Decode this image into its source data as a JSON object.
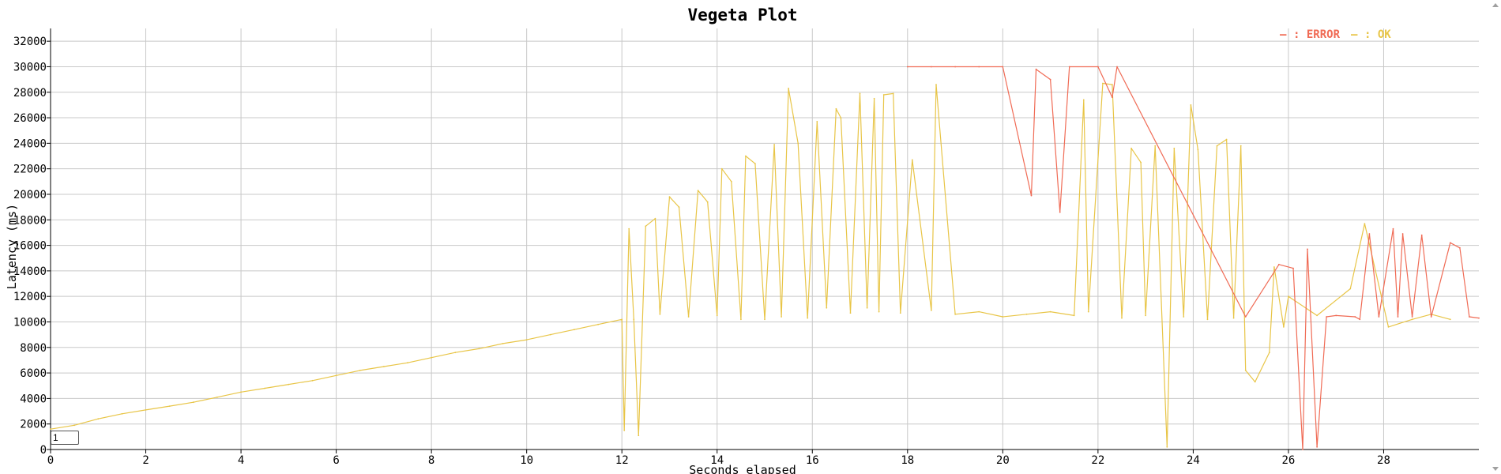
{
  "chart_data": {
    "type": "line",
    "title": "Vegeta Plot",
    "xlabel": "Seconds elapsed",
    "ylabel": "Latency (ms)",
    "xlim": [
      0,
      30
    ],
    "ylim": [
      0,
      33000
    ],
    "grid": true,
    "legend_placement": "top-right",
    "x_ticks": [
      0,
      2,
      4,
      6,
      8,
      10,
      12,
      14,
      16,
      18,
      20,
      22,
      24,
      26,
      28
    ],
    "y_ticks": [
      0,
      2000,
      4000,
      6000,
      8000,
      10000,
      12000,
      14000,
      16000,
      18000,
      20000,
      22000,
      24000,
      26000,
      28000,
      30000,
      32000
    ],
    "series": [
      {
        "name": "OK",
        "color": "#e8c547",
        "points": [
          [
            0,
            1600
          ],
          [
            0.5,
            1900
          ],
          [
            1,
            2400
          ],
          [
            1.5,
            2800
          ],
          [
            2,
            3100
          ],
          [
            2.5,
            3400
          ],
          [
            3,
            3700
          ],
          [
            3.5,
            4100
          ],
          [
            4,
            4500
          ],
          [
            4.5,
            4800
          ],
          [
            5,
            5100
          ],
          [
            5.5,
            5400
          ],
          [
            6,
            5800
          ],
          [
            6.5,
            6200
          ],
          [
            7,
            6500
          ],
          [
            7.5,
            6800
          ],
          [
            8,
            7200
          ],
          [
            8.5,
            7600
          ],
          [
            9,
            7900
          ],
          [
            9.5,
            8300
          ],
          [
            10,
            8600
          ],
          [
            10.5,
            9000
          ],
          [
            11,
            9400
          ],
          [
            11.5,
            9800
          ],
          [
            12,
            10200
          ],
          [
            12.05,
            1500
          ],
          [
            12.15,
            17300
          ],
          [
            12.25,
            10200
          ],
          [
            12.35,
            1100
          ],
          [
            12.5,
            17500
          ],
          [
            12.7,
            18100
          ],
          [
            12.8,
            10600
          ],
          [
            13,
            19800
          ],
          [
            13.2,
            19000
          ],
          [
            13.4,
            10400
          ],
          [
            13.6,
            20300
          ],
          [
            13.8,
            19400
          ],
          [
            14,
            10500
          ],
          [
            14.1,
            22000
          ],
          [
            14.3,
            21000
          ],
          [
            14.5,
            10200
          ],
          [
            14.6,
            23000
          ],
          [
            14.8,
            22400
          ],
          [
            15,
            10200
          ],
          [
            15.2,
            23900
          ],
          [
            15.35,
            10400
          ],
          [
            15.5,
            28300
          ],
          [
            15.7,
            24000
          ],
          [
            15.9,
            10300
          ],
          [
            16.1,
            25700
          ],
          [
            16.3,
            11100
          ],
          [
            16.5,
            26700
          ],
          [
            16.6,
            26000
          ],
          [
            16.8,
            10700
          ],
          [
            17,
            27900
          ],
          [
            17.15,
            11100
          ],
          [
            17.3,
            27500
          ],
          [
            17.4,
            10800
          ],
          [
            17.5,
            27800
          ],
          [
            17.7,
            27900
          ],
          [
            17.85,
            10700
          ],
          [
            18.1,
            22700
          ],
          [
            18.5,
            10900
          ],
          [
            18.6,
            28600
          ],
          [
            19,
            10600
          ],
          [
            19.5,
            10800
          ],
          [
            20,
            10400
          ],
          [
            20.5,
            10600
          ],
          [
            21,
            10800
          ],
          [
            21.5,
            10500
          ],
          [
            21.7,
            27400
          ],
          [
            21.8,
            10800
          ],
          [
            22.1,
            28700
          ],
          [
            22.3,
            28600
          ],
          [
            22.5,
            10300
          ],
          [
            22.7,
            23600
          ],
          [
            22.9,
            22500
          ],
          [
            23.0,
            10500
          ],
          [
            23.2,
            23800
          ],
          [
            23.45,
            200
          ],
          [
            23.6,
            23600
          ],
          [
            23.8,
            10400
          ],
          [
            23.95,
            27000
          ],
          [
            24.1,
            23500
          ],
          [
            24.3,
            10200
          ],
          [
            24.5,
            23800
          ],
          [
            24.7,
            24300
          ],
          [
            24.85,
            10300
          ],
          [
            25.0,
            23800
          ],
          [
            25.1,
            6200
          ],
          [
            25.3,
            5300
          ],
          [
            25.6,
            7600
          ],
          [
            25.7,
            14300
          ],
          [
            25.9,
            9600
          ],
          [
            26.0,
            12000
          ],
          [
            26.6,
            10500
          ],
          [
            27.3,
            12600
          ],
          [
            27.6,
            17700
          ],
          [
            28.1,
            9600
          ],
          [
            28.6,
            10200
          ],
          [
            29.0,
            10600
          ],
          [
            29.4,
            10200
          ]
        ]
      },
      {
        "name": "ERROR",
        "color": "#f06b55",
        "points": [
          [
            18,
            30000
          ],
          [
            18.5,
            30000
          ],
          [
            19,
            30000
          ],
          [
            19.5,
            30000
          ],
          [
            20,
            30000
          ],
          [
            20.6,
            19900
          ],
          [
            20.7,
            29800
          ],
          [
            21.0,
            29000
          ],
          [
            21.2,
            18600
          ],
          [
            21.4,
            30000
          ],
          [
            22.0,
            30000
          ],
          [
            22.3,
            27600
          ],
          [
            22.4,
            30000
          ],
          [
            25.1,
            10400
          ],
          [
            25.8,
            14500
          ],
          [
            26.1,
            14200
          ],
          [
            26.3,
            0
          ],
          [
            26.4,
            15700
          ],
          [
            26.6,
            200
          ],
          [
            26.8,
            10400
          ],
          [
            27.0,
            10500
          ],
          [
            27.4,
            10400
          ],
          [
            27.5,
            10200
          ],
          [
            27.7,
            16900
          ],
          [
            27.9,
            10400
          ],
          [
            28.2,
            17300
          ],
          [
            28.3,
            10400
          ],
          [
            28.4,
            16900
          ],
          [
            28.6,
            10400
          ],
          [
            28.8,
            16800
          ],
          [
            29.0,
            10400
          ],
          [
            29.4,
            16200
          ],
          [
            29.6,
            15800
          ],
          [
            29.8,
            10400
          ],
          [
            30.0,
            10300
          ]
        ]
      }
    ],
    "legend": [
      {
        "marker": "—",
        "label": ": ERROR",
        "color": "#f06b55"
      },
      {
        "marker": "—",
        "label": ": OK",
        "color": "#e8c547"
      }
    ]
  },
  "controls": {
    "zoom_value": "1"
  }
}
